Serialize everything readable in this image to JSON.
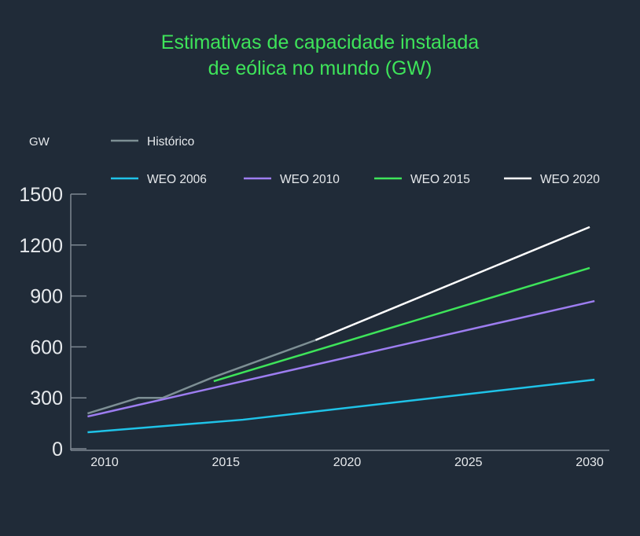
{
  "chart_data": {
    "type": "line",
    "title": "Estimativas de capacidade instalada de eólica no mundo (GW)",
    "title_lines": [
      "Estimativas de capacidade instalada",
      "de eólica no mundo (GW)"
    ],
    "ylabel": "GW",
    "xlabel": "",
    "xlim": [
      2009,
      2030.5
    ],
    "ylim": [
      0,
      1500
    ],
    "xticks": [
      2010,
      2015,
      2020,
      2025,
      2030
    ],
    "yticks": [
      0,
      300,
      600,
      900,
      1200,
      1500
    ],
    "grid": false,
    "legend": "top",
    "series": [
      {
        "name": "Histórico",
        "color": "#7d8f94",
        "points": [
          [
            2009.3,
            208
          ],
          [
            2011.4,
            300
          ],
          [
            2012.4,
            300
          ],
          [
            2014.4,
            417
          ],
          [
            2018.7,
            640
          ]
        ]
      },
      {
        "name": "WEO 2006",
        "color": "#1fc3e8",
        "points": [
          [
            2009.3,
            97
          ],
          [
            2015.7,
            171
          ],
          [
            2030.2,
            407
          ]
        ]
      },
      {
        "name": "WEO 2010",
        "color": "#9d7df0",
        "points": [
          [
            2009.3,
            190
          ],
          [
            2030.2,
            870
          ]
        ]
      },
      {
        "name": "WEO 2015",
        "color": "#3ee45a",
        "points": [
          [
            2014.5,
            398
          ],
          [
            2030,
            1065
          ]
        ]
      },
      {
        "name": "WEO 2020",
        "color": "#ffffff",
        "points": [
          [
            2018.7,
            640
          ],
          [
            2030,
            1306
          ]
        ]
      }
    ]
  }
}
